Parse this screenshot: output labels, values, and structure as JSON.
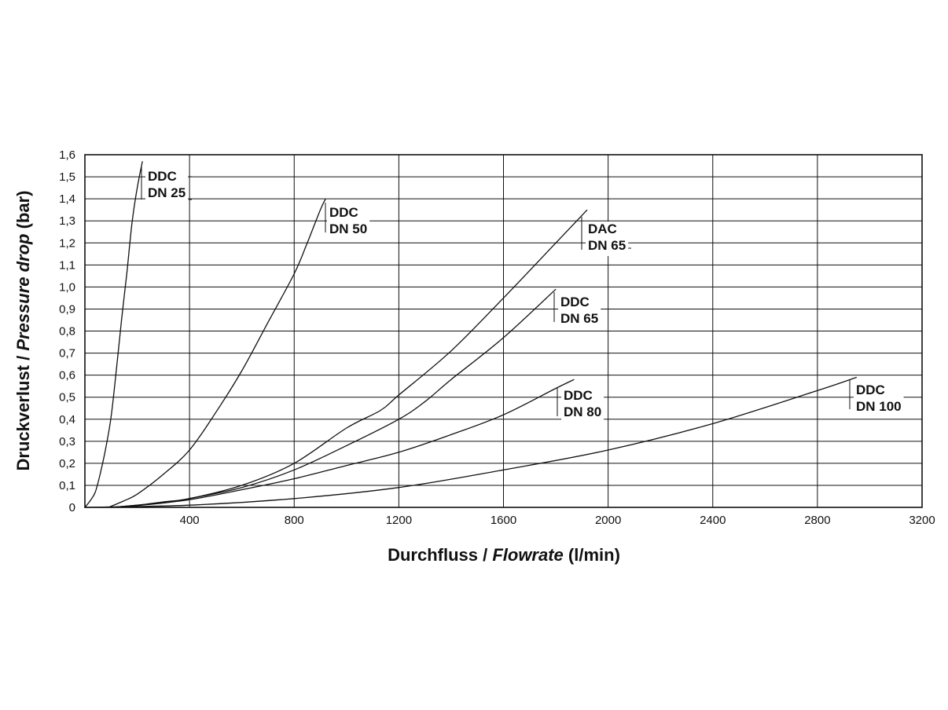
{
  "chart_data": {
    "type": "line",
    "xlabel": {
      "plain": "Durchfluss / ",
      "italic": "Flowrate",
      "unit": " (l/min)"
    },
    "ylabel": {
      "plain": "Druckverlust / ",
      "italic": "Pressure drop",
      "unit": " (bar)"
    },
    "xlim": [
      0,
      3200
    ],
    "ylim": [
      0,
      1.6
    ],
    "x_ticks": [
      {
        "value": 400,
        "label": "400"
      },
      {
        "value": 800,
        "label": "800"
      },
      {
        "value": 1200,
        "label": "1200"
      },
      {
        "value": 1600,
        "label": "1600"
      },
      {
        "value": 2000,
        "label": "2000"
      },
      {
        "value": 2400,
        "label": "2400"
      },
      {
        "value": 2800,
        "label": "2800"
      },
      {
        "value": 3200,
        "label": "3200"
      }
    ],
    "y_ticks": [
      {
        "value": 0,
        "label": "0"
      },
      {
        "value": 0.1,
        "label": "0,1"
      },
      {
        "value": 0.2,
        "label": "0,2"
      },
      {
        "value": 0.3,
        "label": "0,3"
      },
      {
        "value": 0.4,
        "label": "0,4"
      },
      {
        "value": 0.5,
        "label": "0,5"
      },
      {
        "value": 0.6,
        "label": "0,6"
      },
      {
        "value": 0.7,
        "label": "0,7"
      },
      {
        "value": 0.8,
        "label": "0,8"
      },
      {
        "value": 0.9,
        "label": "0,9"
      },
      {
        "value": 1.0,
        "label": "1,0"
      },
      {
        "value": 1.1,
        "label": "1,1"
      },
      {
        "value": 1.2,
        "label": "1,2"
      },
      {
        "value": 1.3,
        "label": "1,3"
      },
      {
        "value": 1.4,
        "label": "1,4"
      },
      {
        "value": 1.5,
        "label": "1,5"
      },
      {
        "value": 1.6,
        "label": "1,6"
      }
    ],
    "grid": true,
    "series": [
      {
        "id": "ddc-dn25",
        "label_lines": [
          "DDC",
          "DN 25"
        ],
        "points": [
          [
            0,
            0
          ],
          [
            20,
            0.03
          ],
          [
            40,
            0.07
          ],
          [
            60,
            0.16
          ],
          [
            80,
            0.27
          ],
          [
            100,
            0.41
          ],
          [
            120,
            0.62
          ],
          [
            140,
            0.85
          ],
          [
            160,
            1.06
          ],
          [
            180,
            1.29
          ],
          [
            200,
            1.45
          ],
          [
            220,
            1.57
          ]
        ]
      },
      {
        "id": "ddc-dn50",
        "label_lines": [
          "DDC",
          "DN 50"
        ],
        "points": [
          [
            90,
            0
          ],
          [
            150,
            0.03
          ],
          [
            200,
            0.06
          ],
          [
            300,
            0.15
          ],
          [
            400,
            0.26
          ],
          [
            500,
            0.43
          ],
          [
            600,
            0.62
          ],
          [
            700,
            0.84
          ],
          [
            800,
            1.06
          ],
          [
            850,
            1.2
          ],
          [
            900,
            1.35
          ],
          [
            920,
            1.4
          ]
        ]
      },
      {
        "id": "dac-dn65",
        "label_lines": [
          "DAC",
          "DN 65"
        ],
        "points": [
          [
            100,
            0
          ],
          [
            200,
            0.01
          ],
          [
            300,
            0.025
          ],
          [
            400,
            0.04
          ],
          [
            600,
            0.1
          ],
          [
            800,
            0.2
          ],
          [
            1000,
            0.36
          ],
          [
            1130,
            0.44
          ],
          [
            1200,
            0.51
          ],
          [
            1400,
            0.71
          ],
          [
            1600,
            0.95
          ],
          [
            1800,
            1.2
          ],
          [
            1920,
            1.35
          ]
        ]
      },
      {
        "id": "ddc-dn65",
        "label_lines": [
          "DDC",
          "DN 65"
        ],
        "points": [
          [
            100,
            0
          ],
          [
            200,
            0.01
          ],
          [
            300,
            0.02
          ],
          [
            400,
            0.04
          ],
          [
            600,
            0.09
          ],
          [
            800,
            0.17
          ],
          [
            1000,
            0.28
          ],
          [
            1200,
            0.4
          ],
          [
            1300,
            0.48
          ],
          [
            1400,
            0.58
          ],
          [
            1600,
            0.77
          ],
          [
            1800,
            0.99
          ]
        ]
      },
      {
        "id": "ddc-dn80",
        "label_lines": [
          "DDC",
          "DN 80"
        ],
        "points": [
          [
            100,
            0
          ],
          [
            200,
            0.008
          ],
          [
            400,
            0.035
          ],
          [
            600,
            0.08
          ],
          [
            800,
            0.13
          ],
          [
            1000,
            0.19
          ],
          [
            1200,
            0.25
          ],
          [
            1400,
            0.33
          ],
          [
            1600,
            0.42
          ],
          [
            1800,
            0.54
          ],
          [
            1870,
            0.58
          ]
        ]
      },
      {
        "id": "ddc-dn100",
        "label_lines": [
          "DDC",
          "DN 100"
        ],
        "points": [
          [
            0,
            0
          ],
          [
            400,
            0.01
          ],
          [
            800,
            0.04
          ],
          [
            1200,
            0.09
          ],
          [
            1600,
            0.17
          ],
          [
            2000,
            0.26
          ],
          [
            2400,
            0.38
          ],
          [
            2800,
            0.53
          ],
          [
            2950,
            0.59
          ]
        ]
      }
    ]
  }
}
